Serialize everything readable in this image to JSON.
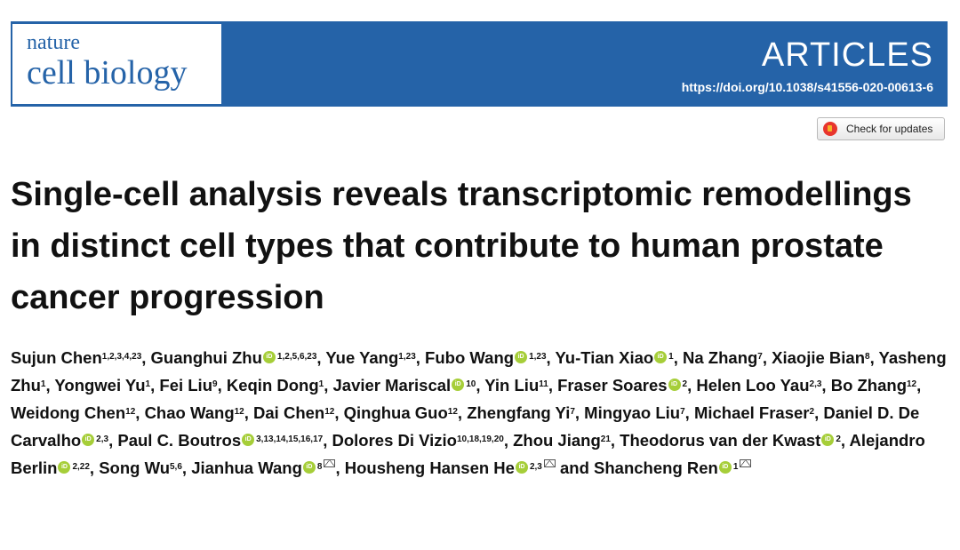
{
  "journal": {
    "logo_line1": "nature",
    "logo_line2": "cell biology",
    "section": "ARTICLES",
    "doi": "https://doi.org/10.1038/s41556-020-00613-6",
    "brand_color": "#2563a8"
  },
  "check_updates_label": "Check for updates",
  "title": "Single-cell analysis reveals transcriptomic remodellings in distinct cell types that contribute to human prostate cancer progression",
  "orcid_icon": "orcid-icon",
  "authors": [
    {
      "name": "Sujun Chen",
      "aff": "1,2,3,4,23"
    },
    {
      "name": "Guanghui Zhu",
      "aff": "1,2,5,6,23",
      "orcid": true
    },
    {
      "name": "Yue Yang",
      "aff": "1,23"
    },
    {
      "name": "Fubo Wang",
      "aff": "1,23",
      "orcid": true
    },
    {
      "name": "Yu-Tian Xiao",
      "aff": "1",
      "orcid": true
    },
    {
      "name": "Na Zhang",
      "aff": "7"
    },
    {
      "name": "Xiaojie Bian",
      "aff": "8"
    },
    {
      "name": "Yasheng Zhu",
      "aff": "1"
    },
    {
      "name": "Yongwei Yu",
      "aff": "1"
    },
    {
      "name": "Fei Liu",
      "aff": "9"
    },
    {
      "name": "Keqin Dong",
      "aff": "1"
    },
    {
      "name": "Javier Mariscal",
      "aff": "10",
      "orcid": true
    },
    {
      "name": "Yin Liu",
      "aff": "11"
    },
    {
      "name": "Fraser Soares",
      "aff": "2",
      "orcid": true
    },
    {
      "name": "Helen Loo Yau",
      "aff": "2,3"
    },
    {
      "name": "Bo Zhang",
      "aff": "12"
    },
    {
      "name": "Weidong Chen",
      "aff": "12"
    },
    {
      "name": "Chao Wang",
      "aff": "12"
    },
    {
      "name": "Dai Chen",
      "aff": "12"
    },
    {
      "name": "Qinghua Guo",
      "aff": "12"
    },
    {
      "name": "Zhengfang Yi",
      "aff": "7"
    },
    {
      "name": "Mingyao Liu",
      "aff": "7"
    },
    {
      "name": "Michael Fraser",
      "aff": "2"
    },
    {
      "name": "Daniel D. De Carvalho",
      "aff": "2,3",
      "orcid": true
    },
    {
      "name": "Paul C. Boutros",
      "aff": "3,13,14,15,16,17",
      "orcid": true
    },
    {
      "name": "Dolores Di Vizio",
      "aff": "10,18,19,20"
    },
    {
      "name": "Zhou Jiang",
      "aff": "21"
    },
    {
      "name": "Theodorus van der Kwast",
      "aff": "2",
      "orcid": true
    },
    {
      "name": "Alejandro Berlin",
      "aff": "2,22",
      "orcid": true
    },
    {
      "name": "Song Wu",
      "aff": "5,6"
    },
    {
      "name": "Jianhua Wang",
      "aff": "8",
      "orcid": true,
      "corresponding": true
    },
    {
      "name": "Housheng Hansen He",
      "aff": "2,3",
      "orcid": true,
      "corresponding": true,
      "and_after": true
    },
    {
      "name": "Shancheng Ren",
      "aff": "1",
      "orcid": true,
      "corresponding": true,
      "last": true
    }
  ],
  "conjunction": "and"
}
